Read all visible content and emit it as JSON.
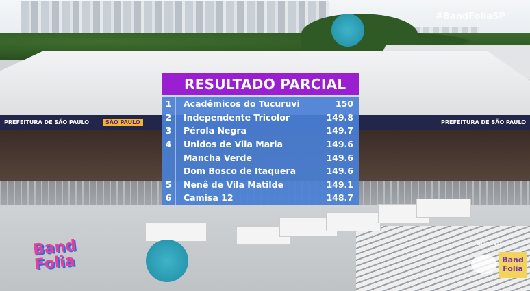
{
  "broadcast": {
    "hashtag": "#BandFoliaSP",
    "live_label": "ao vivo",
    "channel_logo": "Band Folia",
    "event_logo": "Band Folia",
    "banner_texts": [
      "PREFEITURA DE SÃO PAULO",
      "SÃO PAULO",
      "PREFEITURA DE SÃO PAULO"
    ]
  },
  "scoreboard": {
    "title": "RESULTADO PARCIAL",
    "accent_color": "#9a1fd0",
    "row_color": "#4a80d6",
    "rows": [
      {
        "position": "1",
        "school": "Acadêmicos do Tucuruvi",
        "score": "150"
      },
      {
        "position": "2",
        "school": "Independente Tricolor",
        "score": "149.8"
      },
      {
        "position": "3",
        "school": "Pérola Negra",
        "score": "149.7"
      },
      {
        "position": "4",
        "school": "Unidos de Vila Maria",
        "score": "149.6"
      },
      {
        "position": "",
        "school": "Mancha Verde",
        "score": "149.6"
      },
      {
        "position": "",
        "school": "Dom Bosco de Itaquera",
        "score": "149.6"
      },
      {
        "position": "5",
        "school": "Nenê de Vila Matilde",
        "score": "149.1"
      },
      {
        "position": "6",
        "school": "Camisa 12",
        "score": "148.7"
      }
    ]
  }
}
